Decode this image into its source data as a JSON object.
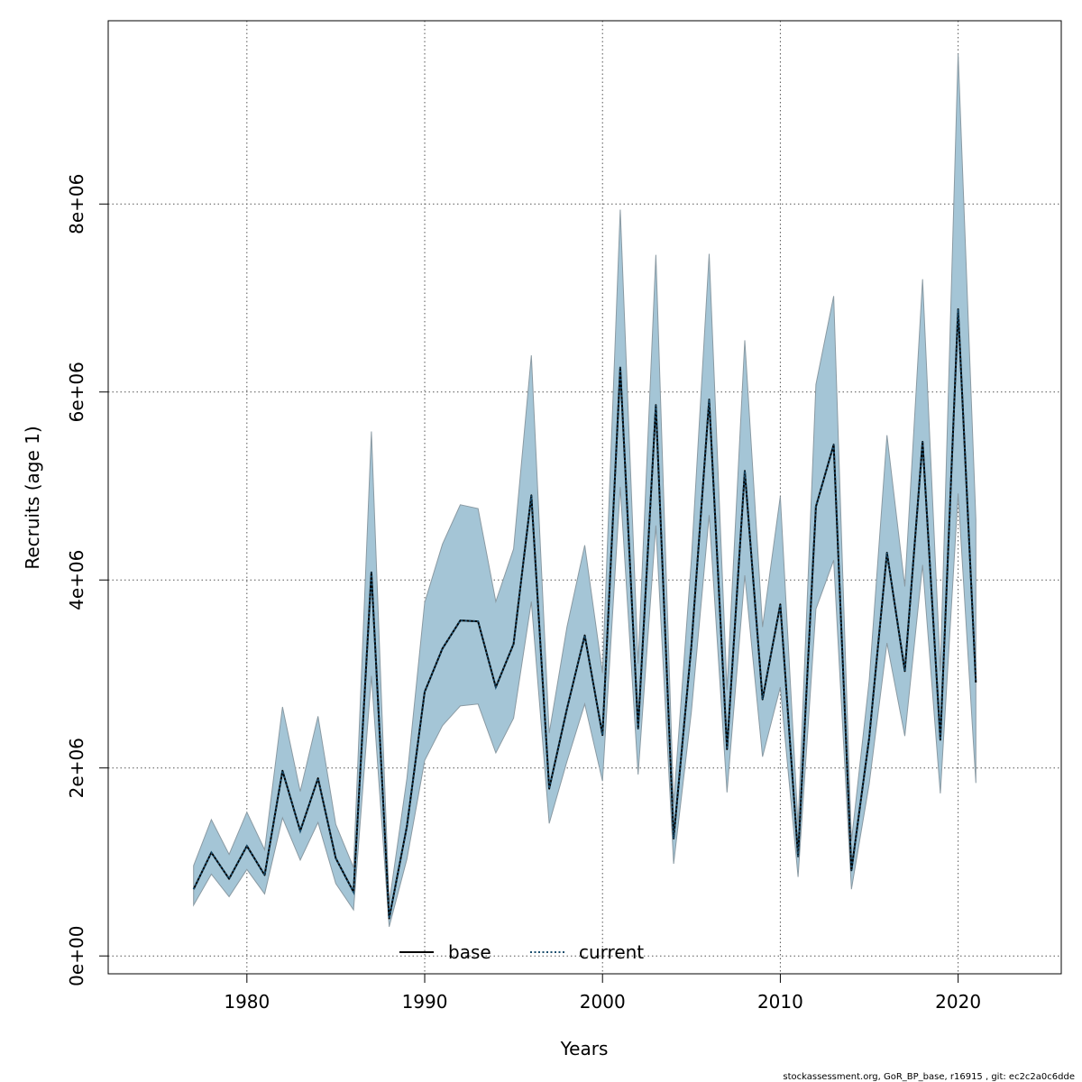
{
  "chart_data": {
    "type": "area",
    "xlabel": "Years",
    "ylabel": "Recruits (age 1)",
    "xlim": [
      1972.2,
      2025.8
    ],
    "ylim": [
      -190000,
      9950000
    ],
    "x_ticks": [
      1980,
      1990,
      2000,
      2010,
      2020
    ],
    "x_tick_labels": [
      "1980",
      "1990",
      "2000",
      "2010",
      "2020"
    ],
    "y_ticks": [
      0,
      2000000,
      4000000,
      6000000,
      8000000
    ],
    "y_tick_labels": [
      "0e+00",
      "2e+06",
      "4e+06",
      "6e+06",
      "8e+06"
    ],
    "grid": true,
    "legend_position": "bottom",
    "colors": {
      "band_fill": "#a4c5d6",
      "band_edge": "#8a9aa3",
      "base_line": "#000000",
      "current_line": "#1a4e6e",
      "grid": "#555555",
      "frame": "#000000"
    },
    "x": [
      1977,
      1978,
      1979,
      1980,
      1981,
      1982,
      1983,
      1984,
      1985,
      1986,
      1987,
      1988,
      1989,
      1990,
      1991,
      1992,
      1993,
      1994,
      1995,
      1996,
      1997,
      1998,
      1999,
      2000,
      2001,
      2002,
      2003,
      2004,
      2005,
      2006,
      2007,
      2008,
      2009,
      2010,
      2011,
      2012,
      2013,
      2014,
      2015,
      2016,
      2017,
      2018,
      2019,
      2020,
      2021
    ],
    "series": [
      {
        "name": "base",
        "style": "solid",
        "values": [
          710000,
          1100000,
          820000,
          1170000,
          860000,
          1970000,
          1330000,
          1890000,
          1040000,
          680000,
          4080000,
          400000,
          1380000,
          2810000,
          3270000,
          3570000,
          3560000,
          2860000,
          3320000,
          4900000,
          1780000,
          2630000,
          3410000,
          2350000,
          6260000,
          2420000,
          5860000,
          1250000,
          3300000,
          5920000,
          2200000,
          5160000,
          2730000,
          3740000,
          1060000,
          4780000,
          5440000,
          910000,
          2320000,
          4290000,
          3030000,
          5470000,
          2300000,
          6880000,
          2910000
        ]
      },
      {
        "name": "current",
        "style": "dotted",
        "values": [
          710000,
          1100000,
          820000,
          1170000,
          860000,
          1970000,
          1330000,
          1890000,
          1040000,
          680000,
          4080000,
          400000,
          1380000,
          2810000,
          3270000,
          3570000,
          3560000,
          2860000,
          3320000,
          4900000,
          1780000,
          2630000,
          3410000,
          2350000,
          6260000,
          2420000,
          5860000,
          1250000,
          3300000,
          5920000,
          2200000,
          5160000,
          2730000,
          3740000,
          1060000,
          4780000,
          5440000,
          910000,
          2320000,
          4290000,
          3030000,
          5470000,
          2300000,
          6880000,
          2910000
        ]
      }
    ],
    "band": {
      "upper": [
        960000,
        1450000,
        1080000,
        1530000,
        1130000,
        2650000,
        1750000,
        2550000,
        1400000,
        940000,
        5580000,
        560000,
        1890000,
        3760000,
        4380000,
        4800000,
        4760000,
        3770000,
        4330000,
        6390000,
        2370000,
        3500000,
        4370000,
        3010000,
        7940000,
        3110000,
        7460000,
        1620000,
        4220000,
        7470000,
        2830000,
        6550000,
        3500000,
        4890000,
        1390000,
        6080000,
        7020000,
        1220000,
        2930000,
        5540000,
        3930000,
        7200000,
        3030000,
        9600000,
        4640000
      ],
      "lower": [
        540000,
        870000,
        630000,
        920000,
        660000,
        1470000,
        1020000,
        1420000,
        770000,
        490000,
        2980000,
        310000,
        1030000,
        2080000,
        2450000,
        2660000,
        2680000,
        2160000,
        2530000,
        3770000,
        1410000,
        2070000,
        2680000,
        1860000,
        4990000,
        1930000,
        4580000,
        980000,
        2600000,
        4690000,
        1740000,
        4050000,
        2120000,
        2860000,
        840000,
        3690000,
        4210000,
        710000,
        1830000,
        3330000,
        2340000,
        4160000,
        1730000,
        4920000,
        1840000
      ]
    }
  },
  "footnote": "stockassessment.org, GoR_BP_base, r16915 , git: ec2c2a0c6dde"
}
